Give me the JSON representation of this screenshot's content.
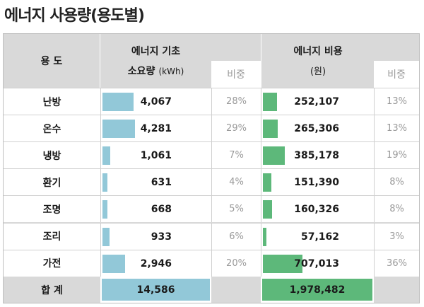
{
  "title": "에너지 사용량(용도별)",
  "header": {
    "usage": "용 도",
    "energy_basic": "에너지 기초",
    "consumption": "소요량",
    "unit": "(kWh)",
    "ratio": "비중",
    "cost": "에너지 비용",
    "cost_unit": "(원)",
    "ratio2": "비중"
  },
  "rows": [
    {
      "label": "난방",
      "kwh": "4,067",
      "kwh_pct": "28%",
      "kwh_val": 4067,
      "cost": "252,107",
      "cost_pct": "13%",
      "cost_val": 252107
    },
    {
      "label": "온수",
      "kwh": "4,281",
      "kwh_pct": "29%",
      "kwh_val": 4281,
      "cost": "265,306",
      "cost_pct": "13%",
      "cost_val": 265306
    },
    {
      "label": "냉방",
      "kwh": "1,061",
      "kwh_pct": "7%",
      "kwh_val": 1061,
      "cost": "385,178",
      "cost_pct": "19%",
      "cost_val": 385178
    },
    {
      "label": "환기",
      "kwh": "631",
      "kwh_pct": "4%",
      "kwh_val": 631,
      "cost": "151,390",
      "cost_pct": "8%",
      "cost_val": 151390
    },
    {
      "label": "조명",
      "kwh": "668",
      "kwh_pct": "5%",
      "kwh_val": 668,
      "cost": "160,326",
      "cost_pct": "8%",
      "cost_val": 160326
    },
    {
      "label": "조리",
      "kwh": "933",
      "kwh_pct": "6%",
      "kwh_val": 933,
      "cost": "57,162",
      "cost_pct": "3%",
      "cost_val": 57162
    },
    {
      "label": "가전",
      "kwh": "2,946",
      "kwh_pct": "20%",
      "kwh_val": 2946,
      "cost": "707,013",
      "cost_pct": "36%",
      "cost_val": 707013
    }
  ],
  "total": {
    "label": "합 계",
    "kwh": "14,586",
    "cost": "1,978,482"
  },
  "colors": {
    "kwh_bar": "#92c8d8",
    "cost_bar": "#5db87a",
    "header_bg": "#d9d9d9"
  }
}
